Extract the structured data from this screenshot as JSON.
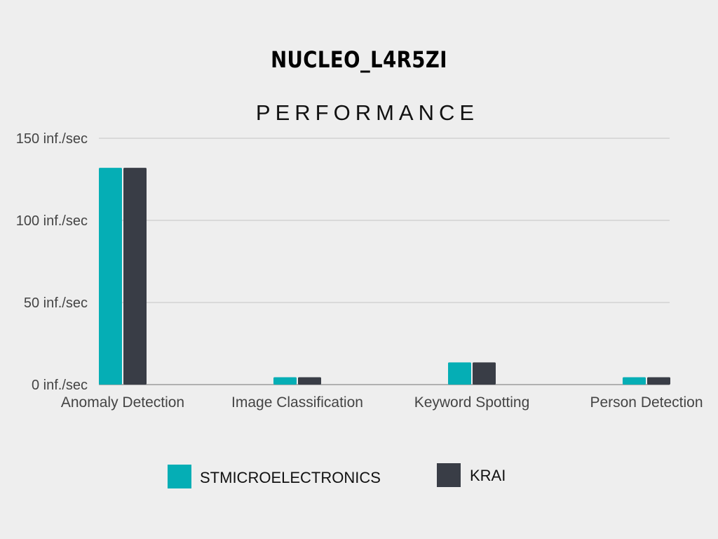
{
  "chart_data": {
    "type": "bar",
    "title": "NUCLEO_L4R5ZI",
    "subtitle": "PERFORMANCE",
    "xlabel": "",
    "ylabel": "",
    "categories": [
      "Anomaly Detection",
      "Image Classification",
      "Keyword Spotting",
      "Person Detection"
    ],
    "series": [
      {
        "name": "STMICROELECTRONICS",
        "color": "#05aeb5",
        "values": [
          132,
          4.5,
          13.5,
          4.5
        ]
      },
      {
        "name": "KRAI",
        "color": "#393d46",
        "values": [
          132,
          4.5,
          13.5,
          4.5
        ]
      }
    ],
    "ylim": [
      0,
      150
    ],
    "yticks": [
      {
        "value": 0,
        "label": "0 inf./sec"
      },
      {
        "value": 50,
        "label": "50 inf./sec"
      },
      {
        "value": 100,
        "label": "100 inf./sec"
      },
      {
        "value": 150,
        "label": "150 inf./sec"
      }
    ],
    "grid": true,
    "legend_position": "bottom"
  }
}
